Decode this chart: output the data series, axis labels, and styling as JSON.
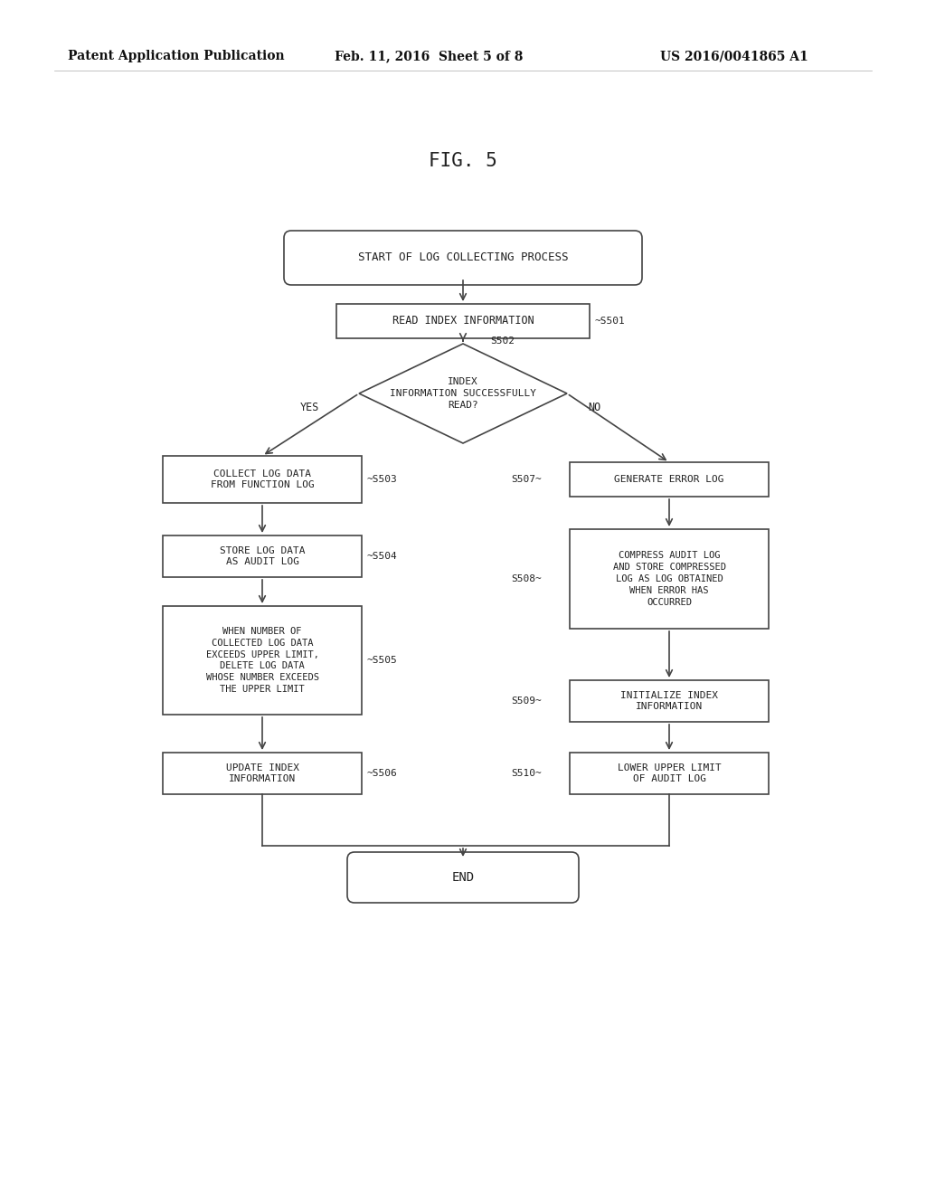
{
  "fig_label": "FIG. 5",
  "header_left": "Patent Application Publication",
  "header_mid": "Feb. 11, 2016  Sheet 5 of 8",
  "header_right": "US 2016/0041865 A1",
  "bg_color": "#ffffff",
  "line_color": "#444444",
  "text_color": "#222222",
  "start_text": "START OF LOG COLLECTING PROCESS",
  "end_text": "END",
  "s501_text": "READ INDEX INFORMATION",
  "s501_label": "~S501",
  "s502_text": "INDEX\nINFORMATION SUCCESSFULLY\nREAD?",
  "s502_label": "S502",
  "yes_label": "YES",
  "no_label": "NO",
  "s503_text": "COLLECT LOG DATA\nFROM FUNCTION LOG",
  "s503_label": "~S503",
  "s504_text": "STORE LOG DATA\nAS AUDIT LOG",
  "s504_label": "~S504",
  "s505_text": "WHEN NUMBER OF\nCOLLECTED LOG DATA\nEXCEEDS UPPER LIMIT,\nDELETE LOG DATA\nWHOSE NUMBER EXCEEDS\nTHE UPPER LIMIT",
  "s505_label": "~S505",
  "s506_text": "UPDATE INDEX\nINFORMATION",
  "s506_label": "~S506",
  "s507_text": "GENERATE ERROR LOG",
  "s507_label": "S507~",
  "s508_text": "COMPRESS AUDIT LOG\nAND STORE COMPRESSED\nLOG AS LOG OBTAINED\nWHEN ERROR HAS\nOCCURRED",
  "s508_label": "S508~",
  "s509_text": "INITIALIZE INDEX\nINFORMATION",
  "s509_label": "S509~",
  "s510_text": "LOWER UPPER LIMIT\nOF AUDIT LOG",
  "s510_label": "S510~"
}
